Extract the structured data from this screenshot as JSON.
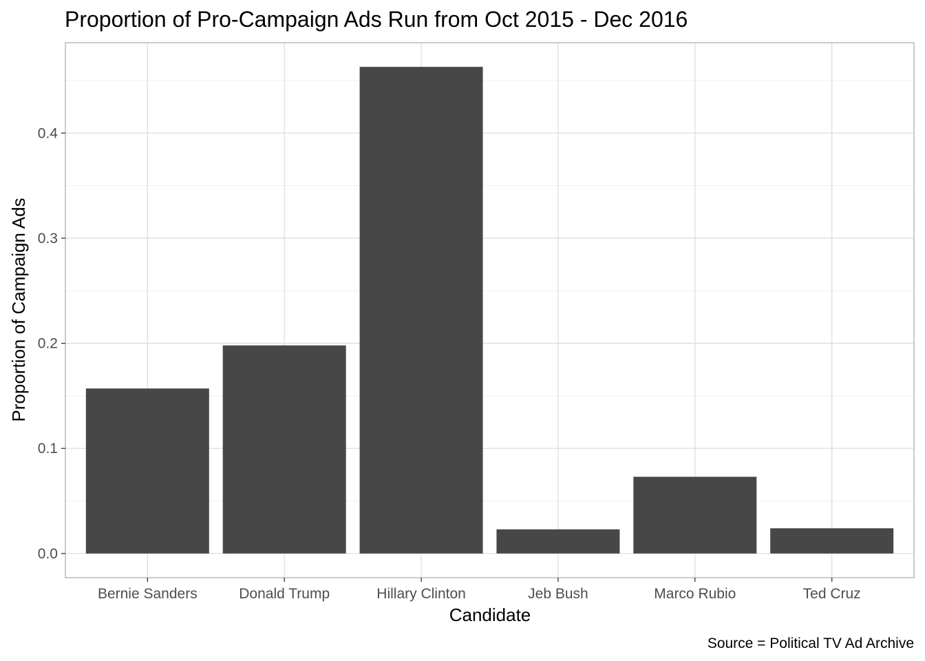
{
  "chart_data": {
    "type": "bar",
    "title": "Proportion of Pro-Campaign Ads Run from Oct 2015 - Dec 2016",
    "xlabel": "Candidate",
    "ylabel": "Proportion of Campaign Ads",
    "caption": "Source = Political TV Ad Archive",
    "categories": [
      "Bernie Sanders",
      "Donald Trump",
      "Hillary Clinton",
      "Jeb Bush",
      "Marco Rubio",
      "Ted Cruz"
    ],
    "values": [
      0.157,
      0.198,
      0.463,
      0.023,
      0.073,
      0.024
    ],
    "ylim": [
      -0.023,
      0.486
    ],
    "yticks": [
      0.0,
      0.1,
      0.2,
      0.3,
      0.4
    ],
    "ytick_labels": [
      "0.0",
      "0.1",
      "0.2",
      "0.3",
      "0.4"
    ],
    "yminor": [
      0.05,
      0.15,
      0.25,
      0.35,
      0.45
    ],
    "grid": true,
    "legend": "none",
    "colors": {
      "bar": "#474747",
      "panel_border": "#b3b3b3",
      "grid_major": "#dedede",
      "grid_minor": "#efefef",
      "tick_text": "#4d4d4d"
    }
  }
}
